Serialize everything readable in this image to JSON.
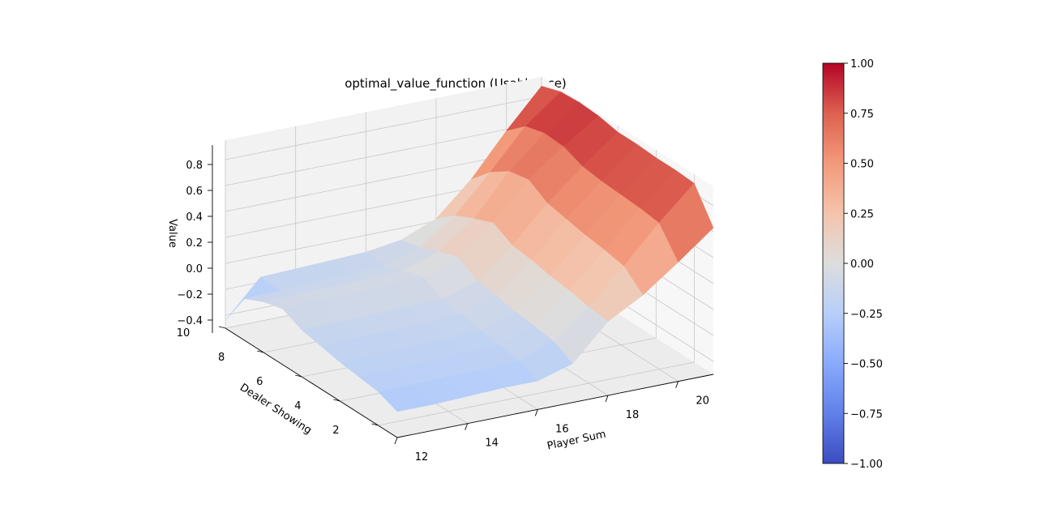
{
  "chart_data": {
    "type": "surface3d",
    "title": "optimal_value_function (Usable Ace)",
    "xlabel": "Player Sum",
    "ylabel": "Dealer Showing",
    "zlabel": "Value",
    "colormap": "coolwarm",
    "x": [
      12,
      13,
      14,
      15,
      16,
      17,
      18,
      19,
      20,
      21
    ],
    "y": [
      1,
      2,
      3,
      4,
      5,
      6,
      7,
      8,
      9,
      10
    ],
    "x_ticks": [
      "12",
      "14",
      "16",
      "18",
      "20"
    ],
    "y_ticks": [
      "2",
      "4",
      "6",
      "8",
      "10"
    ],
    "z_ticks": [
      "−0.4",
      "−0.2",
      "0.0",
      "0.2",
      "0.4",
      "0.6",
      "0.8"
    ],
    "xlim": [
      12,
      21
    ],
    "ylim": [
      1,
      10
    ],
    "zlim": [
      -0.5,
      0.95
    ],
    "grid": true,
    "colorbar": {
      "vmin": -1.0,
      "vmax": 1.0,
      "ticks": [
        "1.00",
        "0.75",
        "0.50",
        "0.25",
        "0.00",
        "−0.25",
        "−0.50",
        "−0.75",
        "−1.00"
      ]
    },
    "z": [
      [
        -0.3,
        -0.3,
        -0.29,
        -0.28,
        -0.28,
        -0.2,
        0.07,
        0.22,
        0.42,
        0.63
      ],
      [
        -0.24,
        -0.24,
        -0.23,
        -0.23,
        -0.22,
        -0.12,
        0.09,
        0.35,
        0.63,
        0.88
      ],
      [
        -0.22,
        -0.21,
        -0.21,
        -0.2,
        -0.19,
        -0.1,
        0.12,
        0.38,
        0.65,
        0.89
      ],
      [
        -0.2,
        -0.19,
        -0.19,
        -0.18,
        -0.17,
        -0.08,
        0.14,
        0.4,
        0.66,
        0.89
      ],
      [
        -0.17,
        -0.16,
        -0.16,
        -0.15,
        -0.14,
        -0.05,
        0.17,
        0.43,
        0.67,
        0.9
      ],
      [
        -0.14,
        -0.13,
        -0.13,
        -0.12,
        -0.12,
        -0.03,
        0.19,
        0.46,
        0.69,
        0.9
      ],
      [
        -0.07,
        -0.06,
        -0.06,
        -0.05,
        -0.04,
        0.06,
        0.27,
        0.55,
        0.75,
        0.93
      ],
      [
        -0.11,
        -0.1,
        -0.1,
        -0.09,
        -0.08,
        0.01,
        0.21,
        0.52,
        0.76,
        0.94
      ],
      [
        -0.18,
        -0.17,
        -0.16,
        -0.15,
        -0.14,
        -0.05,
        0.14,
        0.42,
        0.72,
        0.93
      ],
      [
        -0.44,
        -0.16,
        -0.15,
        -0.14,
        -0.13,
        -0.09,
        0.02,
        0.27,
        0.59,
        0.88
      ]
    ]
  }
}
